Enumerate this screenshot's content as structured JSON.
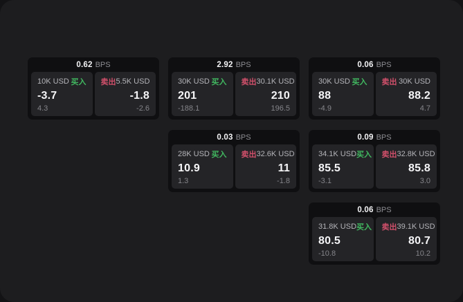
{
  "labels": {
    "bps_unit": "BPS",
    "buy": "买入",
    "sell": "卖出"
  },
  "colors": {
    "surface": "#1d1d1f",
    "card_background": "#0f0f11",
    "panel_background": "#242427",
    "buy_green": "#41b860",
    "sell_red": "#d1506b",
    "value_white": "#f5f5f7",
    "muted_gray": "#85858a"
  },
  "cards": [
    {
      "row": 0,
      "col": 0,
      "bps": "0.62",
      "buy": {
        "size": "10K USD",
        "value": "-3.7",
        "delta": "4.3"
      },
      "sell": {
        "size": "5.5K USD",
        "value": "-1.8",
        "delta": "-2.6"
      }
    },
    {
      "row": 0,
      "col": 1,
      "bps": "2.92",
      "buy": {
        "size": "30K USD",
        "value": "201",
        "delta": "-188.1"
      },
      "sell": {
        "size": "30.1K USD",
        "value": "210",
        "delta": "196.5"
      }
    },
    {
      "row": 0,
      "col": 2,
      "bps": "0.06",
      "buy": {
        "size": "30K USD",
        "value": "88",
        "delta": "-4.9"
      },
      "sell": {
        "size": "30K USD",
        "value": "88.2",
        "delta": "4.7"
      }
    },
    {
      "row": 1,
      "col": 1,
      "bps": "0.03",
      "buy": {
        "size": "28K USD",
        "value": "10.9",
        "delta": "1.3"
      },
      "sell": {
        "size": "32.6K USD",
        "value": "11",
        "delta": "-1.8"
      }
    },
    {
      "row": 1,
      "col": 2,
      "bps": "0.09",
      "buy": {
        "size": "34.1K USD",
        "value": "85.5",
        "delta": "-3.1"
      },
      "sell": {
        "size": "32.8K USD",
        "value": "85.8",
        "delta": "3.0"
      }
    },
    {
      "row": 2,
      "col": 2,
      "bps": "0.06",
      "buy": {
        "size": "31.8K USD",
        "value": "80.5",
        "delta": "-10.8"
      },
      "sell": {
        "size": "39.1K USD",
        "value": "80.7",
        "delta": "10.2"
      }
    }
  ]
}
